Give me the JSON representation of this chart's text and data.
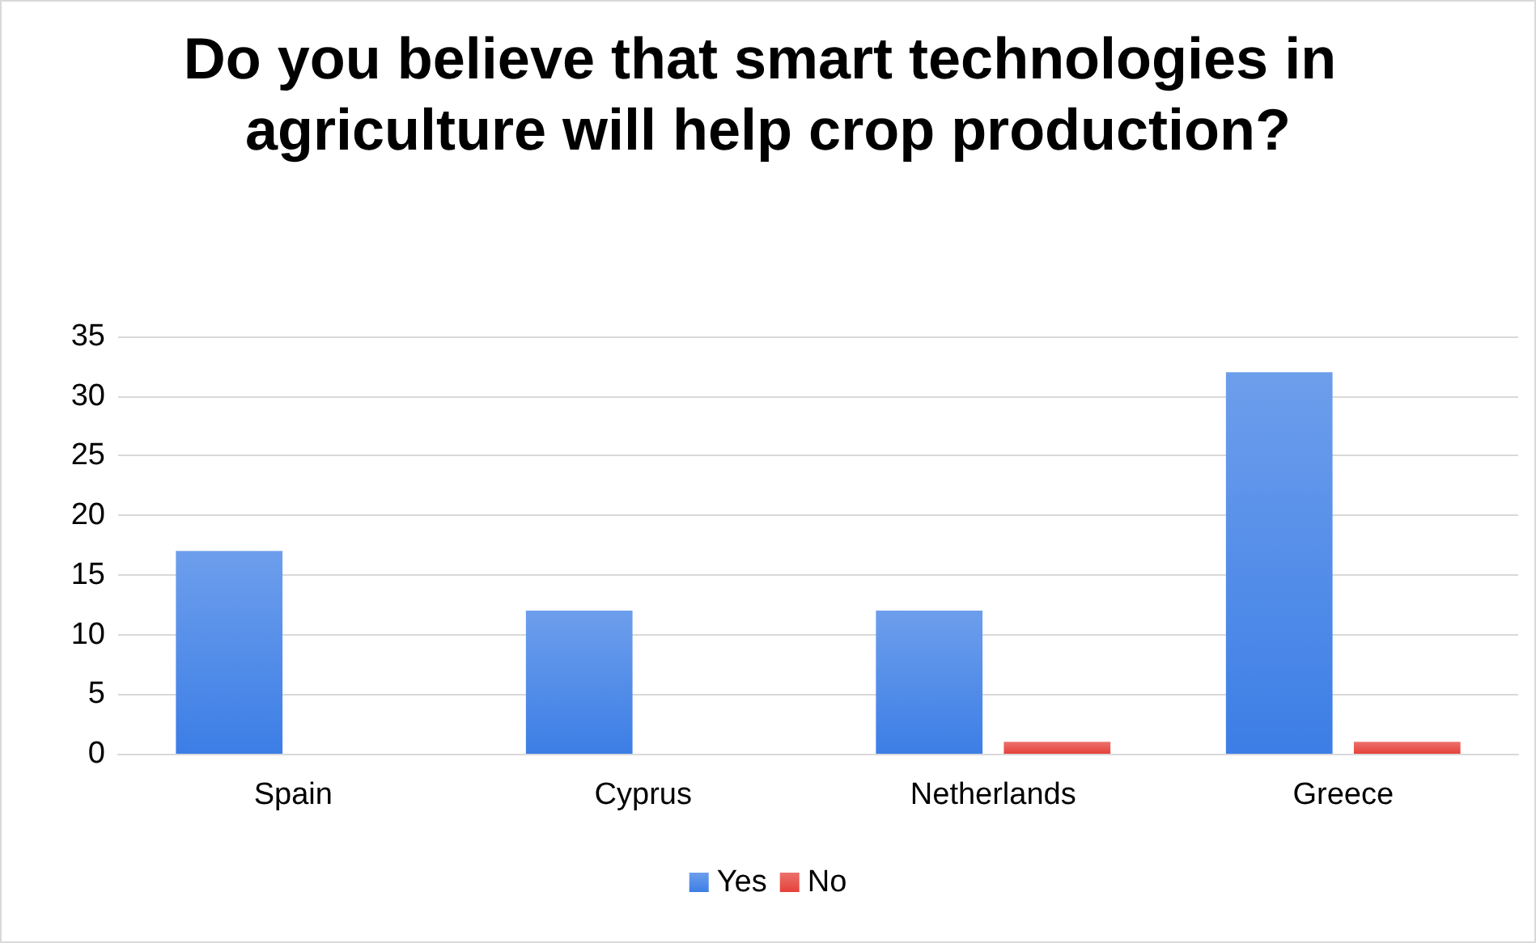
{
  "chart_data": {
    "type": "bar",
    "title": "Do you believe that smart technologies in agriculture will help crop production?",
    "categories": [
      "Spain",
      "Cyprus",
      "Netherlands",
      "Greece"
    ],
    "series": [
      {
        "name": "Yes",
        "color": "#3c7ee6",
        "values": [
          17,
          12,
          12,
          32
        ]
      },
      {
        "name": "No",
        "color": "#e5413a",
        "values": [
          0,
          0,
          1,
          1
        ]
      }
    ],
    "ylim": [
      0,
      35
    ],
    "yticks": [
      0,
      5,
      10,
      15,
      20,
      25,
      30,
      35
    ],
    "grid": "y",
    "legend": "bottom"
  }
}
